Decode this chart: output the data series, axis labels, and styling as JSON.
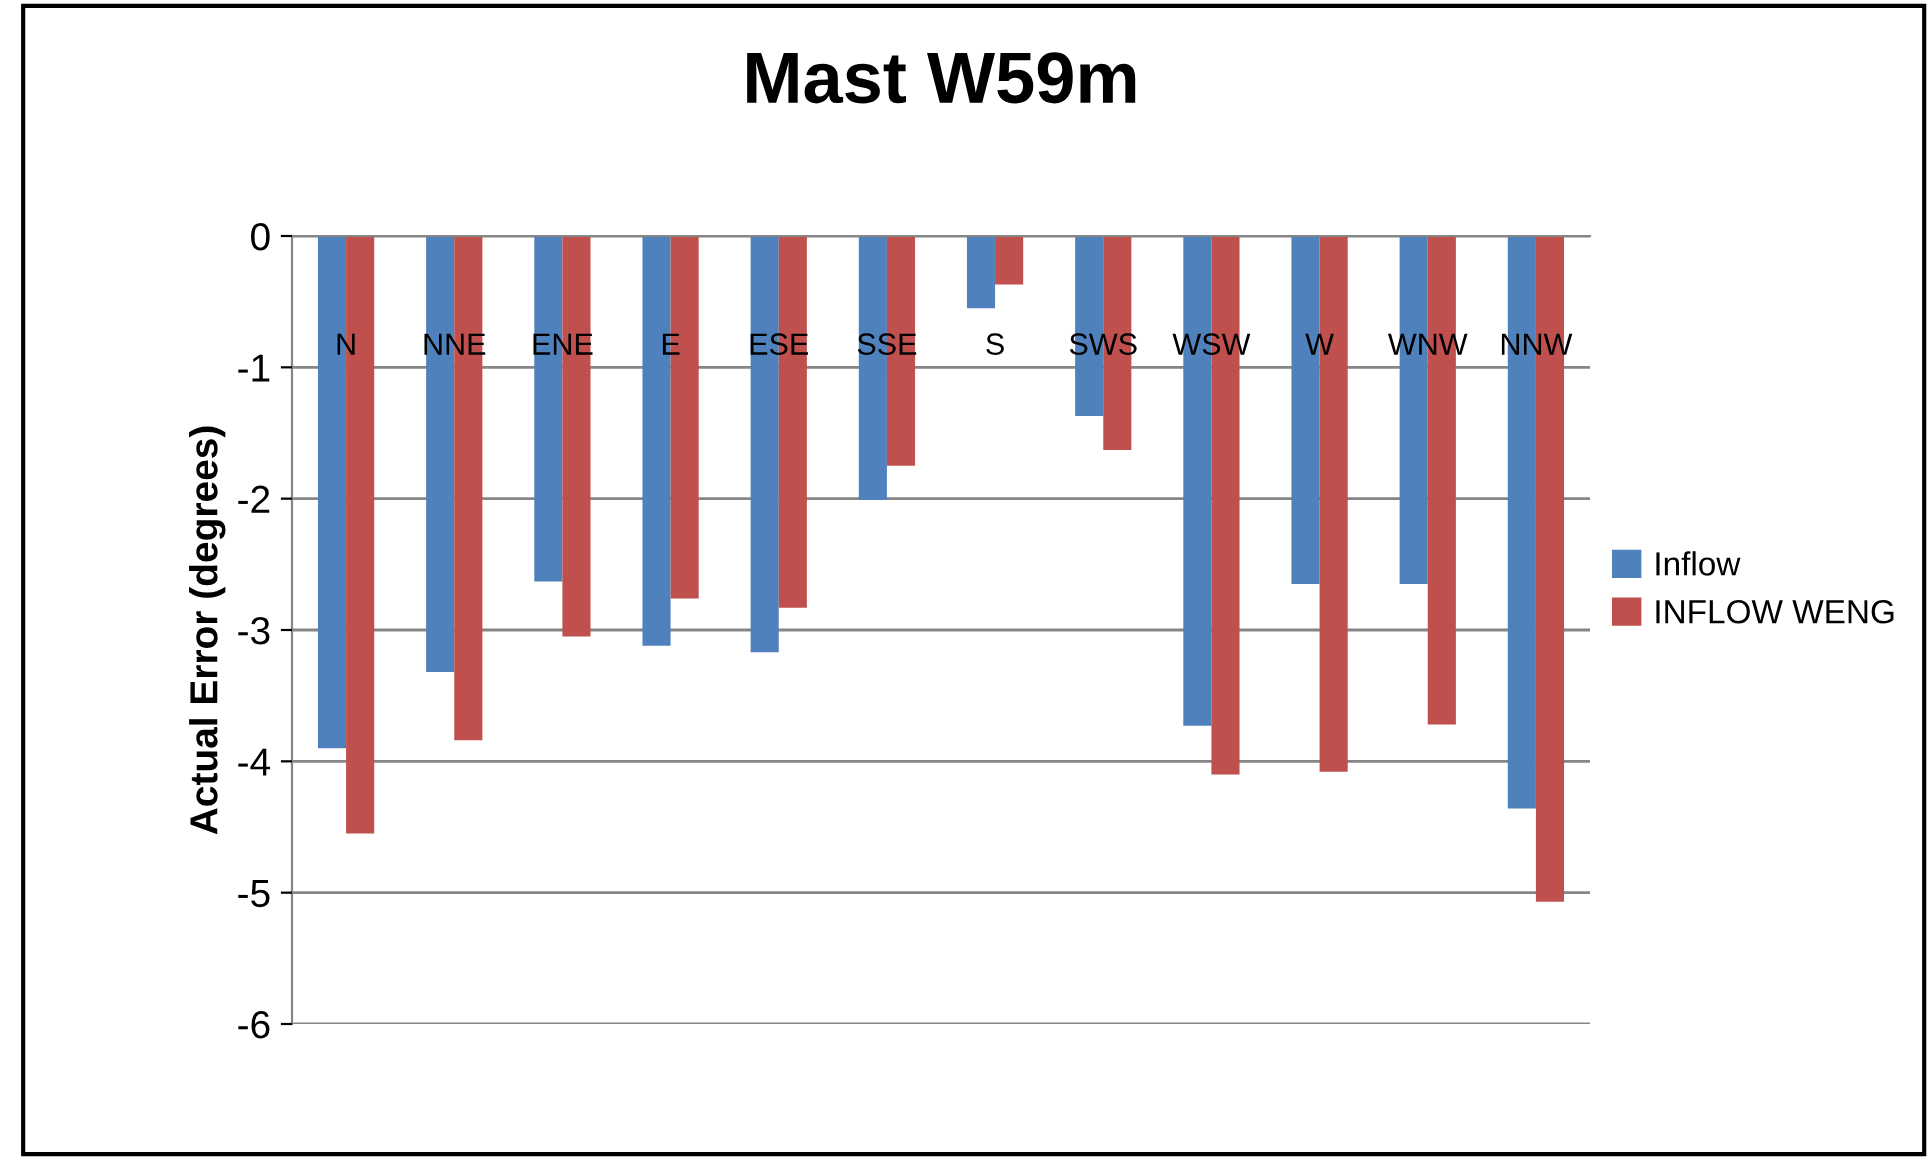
{
  "chart_data": {
    "type": "bar",
    "title": "Mast W59m",
    "ylabel": "Actual Error (degrees)",
    "categories": [
      "N",
      "NNE",
      "ENE",
      "E",
      "ESE",
      "SSE",
      "S",
      "SWS",
      "WSW",
      "W",
      "WNW",
      "NNW"
    ],
    "series": [
      {
        "name": "Inflow",
        "color": "#4f81bd",
        "values": [
          -3.9,
          -3.32,
          -2.63,
          -3.12,
          -3.17,
          -2.01,
          -0.55,
          -1.37,
          -3.73,
          -2.65,
          -2.65,
          -4.36
        ]
      },
      {
        "name": "INFLOW WENG",
        "color": "#c0504d",
        "values": [
          -4.55,
          -3.84,
          -3.05,
          -2.76,
          -2.83,
          -1.75,
          -0.37,
          -1.63,
          -4.1,
          -4.08,
          -3.72,
          -5.07
        ]
      }
    ],
    "ylim": [
      -6,
      0
    ],
    "yticks": [
      -6,
      -5,
      -4,
      -3,
      -2,
      -1,
      0
    ],
    "grid": "y",
    "legend": "right"
  }
}
